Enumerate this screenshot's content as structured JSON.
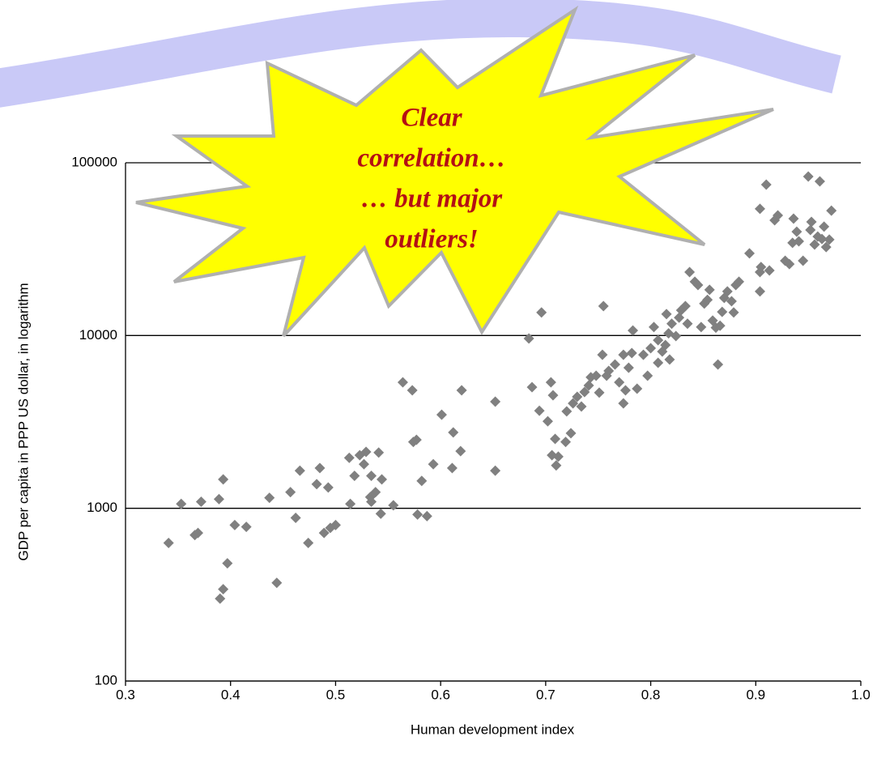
{
  "chart_data": {
    "type": "scatter",
    "x_label": "Human development index",
    "y_label": "GDP per capita in PPP US dollar, in logarithm",
    "annotation": [
      "Clear",
      "correlation…",
      "… but major",
      "outliers!"
    ],
    "color": "#808080",
    "log_scale_y": true,
    "grid": true,
    "xlim": [
      0.3,
      1.0
    ],
    "ylim": [
      100,
      100000
    ],
    "xticks": [
      0.3,
      0.4,
      0.5,
      0.6,
      0.7,
      0.8,
      0.9,
      {
        "value": 1,
        "label": "1.0"
      }
    ],
    "yticks": [
      100,
      1000,
      10000,
      100000
    ],
    "x": [
      0.341,
      0.353,
      0.366,
      0.369,
      0.372,
      0.389,
      0.393,
      0.39,
      0.393,
      0.397,
      0.404,
      0.415,
      0.437,
      0.444,
      0.457,
      0.462,
      0.466,
      0.474,
      0.482,
      0.485,
      0.493,
      0.489,
      0.495,
      0.5,
      0.513,
      0.514,
      0.518,
      0.523,
      0.529,
      0.534,
      0.527,
      0.538,
      0.541,
      0.544,
      0.533,
      0.543,
      0.555,
      0.534,
      0.564,
      0.573,
      0.574,
      0.577,
      0.578,
      0.582,
      0.587,
      0.593,
      0.601,
      0.611,
      0.612,
      0.62,
      0.619,
      0.652,
      0.652,
      0.684,
      0.687,
      0.696,
      0.694,
      0.705,
      0.707,
      0.709,
      0.71,
      0.702,
      0.706,
      0.712,
      0.719,
      0.724,
      0.72,
      0.726,
      0.73,
      0.734,
      0.737,
      0.741,
      0.743,
      0.748,
      0.751,
      0.755,
      0.754,
      0.758,
      0.76,
      0.766,
      0.77,
      0.774,
      0.776,
      0.774,
      0.779,
      0.782,
      0.783,
      0.787,
      0.793,
      0.797,
      0.8,
      0.803,
      0.807,
      0.807,
      0.811,
      0.814,
      0.815,
      0.818,
      0.817,
      0.82,
      0.824,
      0.827,
      0.829,
      0.833,
      0.835,
      0.837,
      0.842,
      0.845,
      0.848,
      0.851,
      0.854,
      0.856,
      0.859,
      0.862,
      0.864,
      0.866,
      0.868,
      0.87,
      0.873,
      0.877,
      0.879,
      0.881,
      0.884,
      0.894,
      0.904,
      0.904,
      0.905,
      0.91,
      0.904,
      0.913,
      0.918,
      0.921,
      0.928,
      0.932,
      0.935,
      0.936,
      0.939,
      0.941,
      0.945,
      0.95,
      0.952,
      0.953,
      0.956,
      0.959,
      0.961,
      0.963,
      0.965,
      0.967,
      0.97,
      0.972
    ],
    "values": [
      630,
      1060,
      700,
      720,
      1090,
      1130,
      1470,
      300,
      340,
      480,
      800,
      780,
      1150,
      370,
      1240,
      880,
      1650,
      630,
      1380,
      1710,
      1320,
      720,
      770,
      800,
      1960,
      1060,
      1540,
      2030,
      2120,
      1540,
      1800,
      1240,
      2100,
      1470,
      1160,
      930,
      1040,
      1090,
      5360,
      4820,
      2420,
      2490,
      920,
      1440,
      900,
      1800,
      3480,
      1710,
      2750,
      4820,
      2140,
      4140,
      1650,
      9610,
      5020,
      13600,
      3670,
      5360,
      4510,
      2520,
      1770,
      3190,
      2030,
      1990,
      2420,
      2720,
      3640,
      4050,
      4420,
      3880,
      4710,
      5140,
      5730,
      5850,
      4670,
      14800,
      7740,
      5850,
      6240,
      6800,
      5360,
      7740,
      4820,
      4050,
      6510,
      7910,
      10700,
      4920,
      7740,
      5850,
      8440,
      11200,
      9400,
      6950,
      8080,
      8810,
      13300,
      7260,
      10300,
      11700,
      9930,
      12700,
      14000,
      14800,
      11700,
      23300,
      20500,
      19600,
      11200,
      15300,
      16100,
      18400,
      12200,
      11100,
      6800,
      11400,
      13700,
      16500,
      18000,
      15800,
      13600,
      19600,
      20500,
      29900,
      18000,
      23300,
      24900,
      74700,
      54100,
      23800,
      46500,
      49600,
      27100,
      25900,
      34400,
      47500,
      39900,
      35100,
      27100,
      83200,
      40800,
      45500,
      33600,
      37400,
      78000,
      36200,
      42700,
      32500,
      35900,
      52800
    ]
  }
}
